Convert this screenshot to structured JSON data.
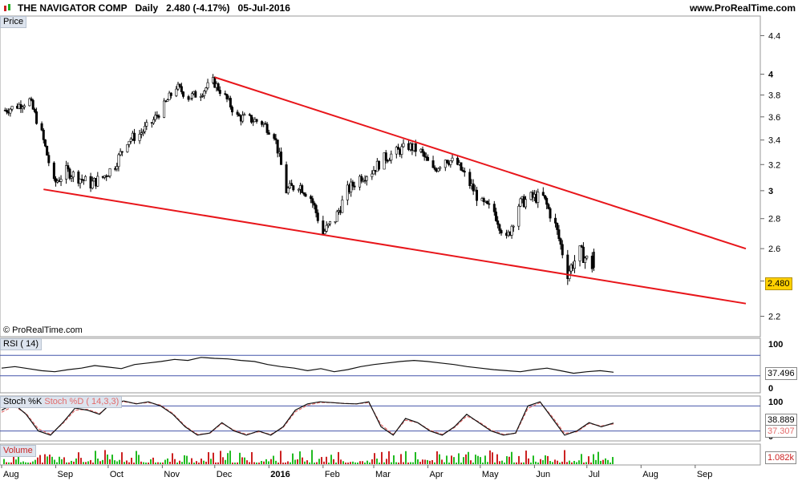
{
  "header": {
    "title": "THE NAVIGATOR COMP   Daily   2.480 (-4.17%)   05-Jul-2016",
    "site": "www.ProRealTime.com"
  },
  "panels": {
    "price_label": "Price",
    "rsi_label": "RSI ( 14)",
    "stoch_k_label": "Stoch %K",
    "stoch_d_label": "Stoch %D ( 14,3,3)",
    "volume_label": "Volume",
    "watermark": "© ProRealTime.com"
  },
  "values": {
    "last_price": "2.480",
    "rsi": "37.496",
    "stoch_k": "38.889",
    "stoch_d": "37.307",
    "volume": "1.082k"
  },
  "colors": {
    "trendline": "#e8161b",
    "stoch_d": "#e26a6a",
    "stoch_k": "#3a55c8",
    "vol_up": "#22bb22",
    "vol_down": "#cc2222"
  },
  "chart_data": [
    {
      "type": "candlestick",
      "title": "THE NAVIGATOR COMP",
      "ylabel": "Price",
      "y_ticks": [
        2.2,
        2.4,
        2.6,
        2.8,
        3,
        3.2,
        3.4,
        3.6,
        3.8,
        4,
        4.4
      ],
      "ylim": [
        2.1,
        4.6
      ],
      "x_ticks": [
        "Aug",
        "Sep",
        "Oct",
        "Nov",
        "Dec",
        "2016",
        "Feb",
        "Mar",
        "Apr",
        "May",
        "Jun",
        "Jul",
        "Aug",
        "Sep"
      ],
      "close_path": [
        [
          "2015-08-03",
          3.66
        ],
        [
          "2015-08-10",
          3.7
        ],
        [
          "2015-08-17",
          3.75
        ],
        [
          "2015-08-24",
          3.45
        ],
        [
          "2015-08-31",
          3.05
        ],
        [
          "2015-09-07",
          3.15
        ],
        [
          "2015-09-14",
          3.1
        ],
        [
          "2015-09-21",
          3.05
        ],
        [
          "2015-09-28",
          3.1
        ],
        [
          "2015-10-05",
          3.2
        ],
        [
          "2015-10-12",
          3.4
        ],
        [
          "2015-10-19",
          3.45
        ],
        [
          "2015-10-26",
          3.55
        ],
        [
          "2015-11-02",
          3.7
        ],
        [
          "2015-11-09",
          3.88
        ],
        [
          "2015-11-16",
          3.78
        ],
        [
          "2015-11-23",
          3.82
        ],
        [
          "2015-11-30",
          3.93
        ],
        [
          "2015-12-07",
          3.78
        ],
        [
          "2015-12-14",
          3.6
        ],
        [
          "2015-12-21",
          3.58
        ],
        [
          "2015-12-28",
          3.55
        ],
        [
          "2016-01-04",
          3.45
        ],
        [
          "2016-01-11",
          3.0
        ],
        [
          "2016-01-18",
          3.05
        ],
        [
          "2016-01-25",
          2.95
        ],
        [
          "2016-02-01",
          2.7
        ],
        [
          "2016-02-08",
          2.8
        ],
        [
          "2016-02-15",
          3.0
        ],
        [
          "2016-02-22",
          3.1
        ],
        [
          "2016-02-29",
          3.15
        ],
        [
          "2016-03-07",
          3.25
        ],
        [
          "2016-03-14",
          3.3
        ],
        [
          "2016-03-21",
          3.35
        ],
        [
          "2016-03-28",
          3.3
        ],
        [
          "2016-04-04",
          3.15
        ],
        [
          "2016-04-11",
          3.25
        ],
        [
          "2016-04-18",
          3.2
        ],
        [
          "2016-04-25",
          3.05
        ],
        [
          "2016-05-02",
          2.9
        ],
        [
          "2016-05-09",
          2.85
        ],
        [
          "2016-05-16",
          2.65
        ],
        [
          "2016-05-23",
          2.9
        ],
        [
          "2016-05-30",
          2.95
        ],
        [
          "2016-06-06",
          2.95
        ],
        [
          "2016-06-13",
          2.75
        ],
        [
          "2016-06-20",
          2.45
        ],
        [
          "2016-06-27",
          2.58
        ],
        [
          "2016-07-05",
          2.48
        ]
      ],
      "trendlines": [
        {
          "name": "upper",
          "points": [
            [
              "2015-12-01",
              3.97
            ],
            [
              "2016-09-30",
              2.6
            ]
          ]
        },
        {
          "name": "lower",
          "points": [
            [
              "2015-08-25",
              3.01
            ],
            [
              "2016-09-30",
              2.27
            ]
          ]
        }
      ]
    },
    {
      "type": "line",
      "title": "RSI ( 14)",
      "ylim": [
        0,
        100
      ],
      "y_ticks": [
        0,
        100
      ],
      "levels": [
        30,
        70
      ],
      "last_value": 37.496,
      "values": [
        45,
        48,
        44,
        40,
        38,
        42,
        45,
        50,
        47,
        44,
        52,
        55,
        58,
        62,
        60,
        66,
        64,
        63,
        60,
        58,
        52,
        48,
        45,
        40,
        44,
        38,
        42,
        48,
        52,
        55,
        58,
        60,
        58,
        55,
        52,
        48,
        45,
        42,
        40,
        38,
        42,
        45,
        40,
        35,
        38,
        40,
        37
      ]
    },
    {
      "type": "line",
      "title": "Stoch %K / Stoch %D ( 14,3,3)",
      "ylim": [
        0,
        100
      ],
      "y_ticks": [
        0,
        100
      ],
      "levels": [
        20,
        80
      ],
      "series": [
        {
          "name": "Stoch %K",
          "last_value": 38.889,
          "values": [
            70,
            85,
            60,
            20,
            10,
            40,
            75,
            70,
            60,
            88,
            92,
            85,
            90,
            80,
            60,
            30,
            10,
            15,
            40,
            20,
            10,
            20,
            10,
            30,
            70,
            85,
            90,
            88,
            86,
            85,
            90,
            30,
            10,
            50,
            40,
            20,
            10,
            30,
            60,
            40,
            20,
            10,
            15,
            80,
            90,
            50,
            10,
            20,
            40,
            30,
            39
          ]
        },
        {
          "name": "Stoch %D ( 14,3,3)",
          "last_value": 37.307,
          "values": [
            65,
            80,
            62,
            25,
            12,
            38,
            70,
            72,
            62,
            85,
            90,
            86,
            88,
            82,
            62,
            32,
            12,
            14,
            38,
            22,
            12,
            18,
            12,
            28,
            66,
            82,
            88,
            88,
            86,
            85,
            88,
            35,
            12,
            46,
            40,
            22,
            12,
            28,
            56,
            42,
            22,
            12,
            14,
            74,
            88,
            54,
            14,
            18,
            38,
            32,
            37
          ]
        }
      ]
    },
    {
      "type": "bar",
      "title": "Volume",
      "last_value": "1.082k"
    }
  ]
}
